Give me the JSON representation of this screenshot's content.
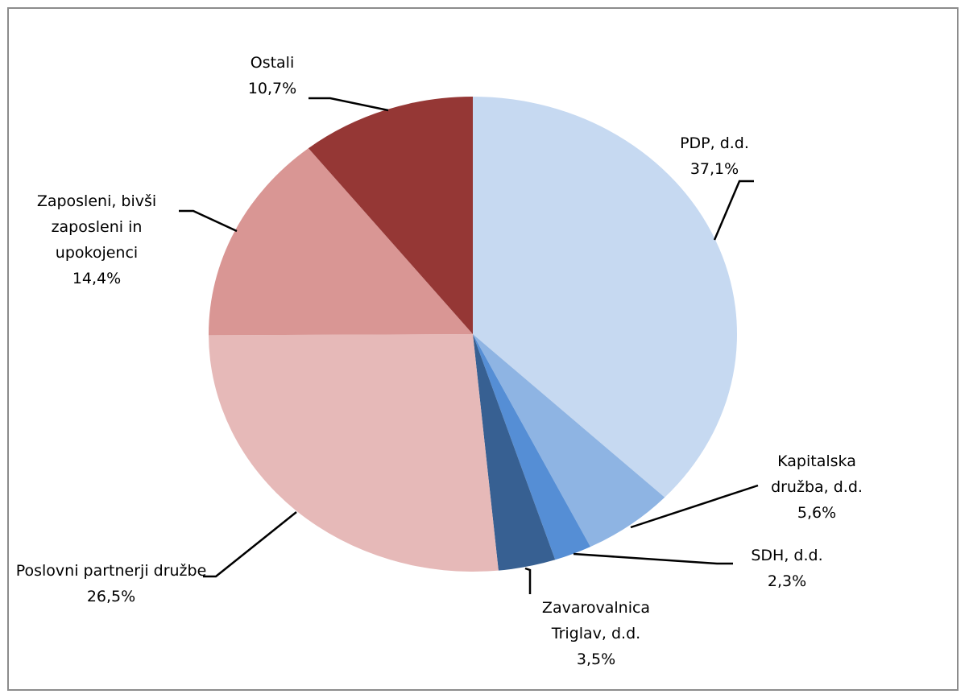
{
  "chart_data": {
    "type": "pie",
    "categories": [
      "PDP, d.d.",
      "Kapitalska družba, d.d.",
      "SDH, d.d.",
      "Zavarovalnica Triglav, d.d.",
      "Poslovni partnerji družbe",
      "Zaposleni, bivši zaposleni in upokojenci",
      "Ostali"
    ],
    "values": [
      37.1,
      5.6,
      2.3,
      3.5,
      26.5,
      14.4,
      10.7
    ],
    "value_labels": [
      "37,1%",
      "5,6%",
      "2,3%",
      "3,5%",
      "26,5%",
      "14,4%",
      "10,7%"
    ],
    "colors": [
      "#c6d9f1",
      "#8eb4e3",
      "#558ed5",
      "#376092",
      "#e6b9b8",
      "#d99694",
      "#953735"
    ]
  }
}
